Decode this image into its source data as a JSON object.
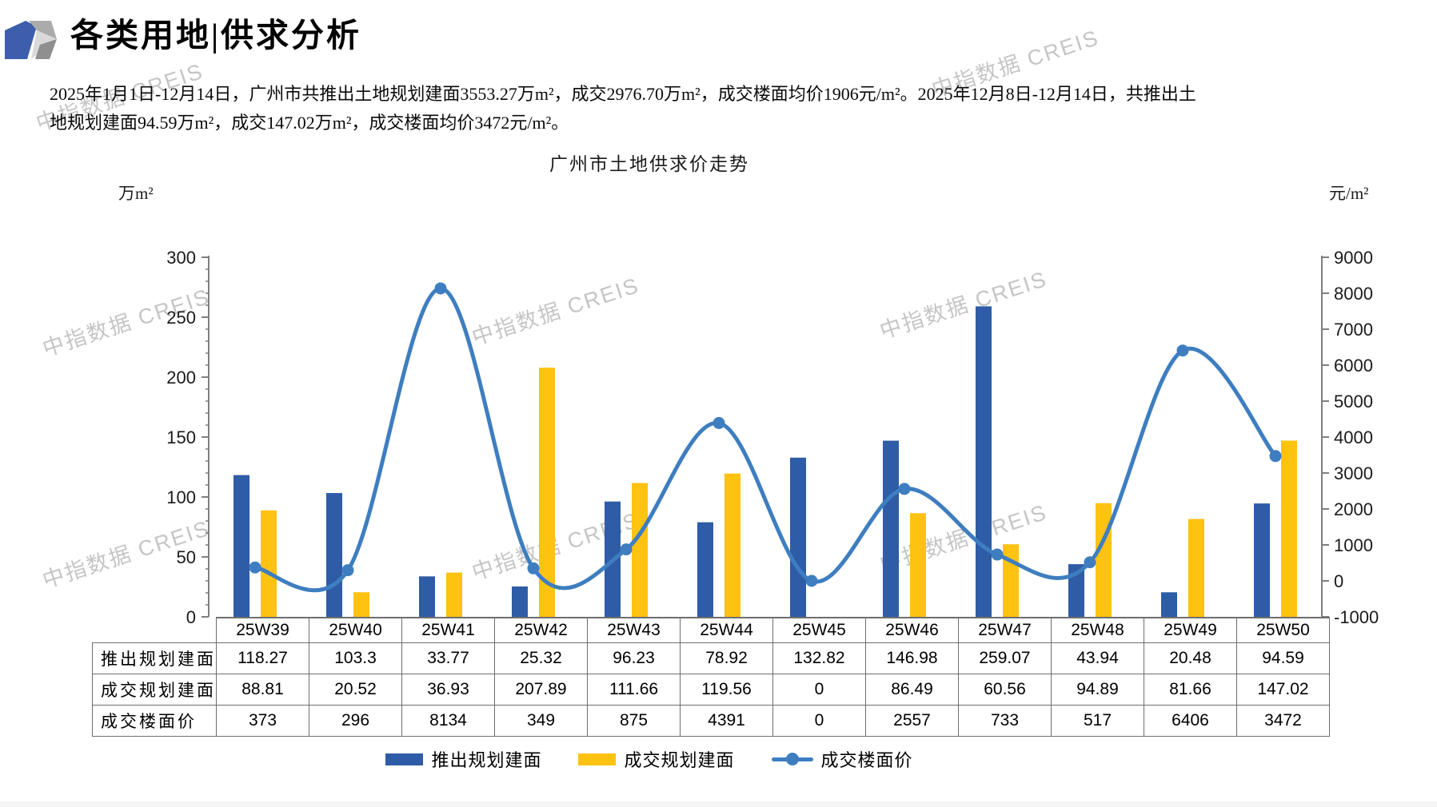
{
  "header": {
    "title": "各类用地|供求分析"
  },
  "summary": {
    "text": "2025年1月1日-12月14日，广州市共推出土地规划建面3553.27万m²，成交2976.70万m²，成交楼面均价1906元/m²。2025年12月8日-12月14日，共推出土地规划建面94.59万m²，成交147.02万m²，成交楼面均价3472元/m²。"
  },
  "watermark": {
    "text": "中指数据 CREIS"
  },
  "colors": {
    "bar_blue": "#2E5CA6",
    "bar_yellow": "#FEC211",
    "line_blue": "#3E7EC0",
    "axis_gray": "#7F7F7F",
    "logo_blue": "#3D5EAC",
    "logo_gray_mid": "#ABABAB",
    "logo_gray_light": "#D9D9D9",
    "logo_gray_dark": "#8F8F8F"
  },
  "chart_data": {
    "type": "bar",
    "subtype": "grouped bars + smoothed line, dual axis",
    "title": "广州市土地供求价走势",
    "categories": [
      "25W39",
      "25W40",
      "25W41",
      "25W42",
      "25W43",
      "25W44",
      "25W45",
      "25W46",
      "25W47",
      "25W48",
      "25W49",
      "25W50"
    ],
    "series": [
      {
        "name": "推出规划建面",
        "type": "bar",
        "axis": "left",
        "color": "#2E5CA6",
        "values": [
          118.27,
          103.3,
          33.77,
          25.32,
          96.23,
          78.92,
          132.82,
          146.98,
          259.07,
          43.94,
          20.48,
          94.59
        ]
      },
      {
        "name": "成交规划建面",
        "type": "bar",
        "axis": "left",
        "color": "#FEC211",
        "values": [
          88.81,
          20.52,
          36.93,
          207.89,
          111.66,
          119.56,
          0,
          86.49,
          60.56,
          94.89,
          81.66,
          147.02
        ]
      },
      {
        "name": "成交楼面价",
        "type": "line",
        "axis": "right",
        "color": "#3E7EC0",
        "values": [
          373,
          296,
          8134,
          349,
          875,
          4391,
          0,
          2557,
          733,
          517,
          6406,
          3472
        ]
      }
    ],
    "left_axis": {
      "unit": "万m²",
      "min": 0,
      "max": 300,
      "step": 50,
      "minor_step": 10
    },
    "right_axis": {
      "unit": "元/m²",
      "min": -1000,
      "max": 9000,
      "step": 1000
    },
    "legend_position": "bottom",
    "grid": false
  }
}
